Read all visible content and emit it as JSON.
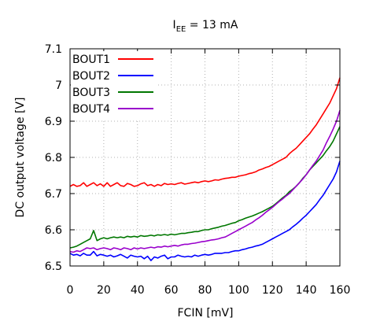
{
  "chart_data": {
    "type": "line",
    "title": "I_EE = 13 mA",
    "title_parts": {
      "main": "I",
      "sub": "EE",
      "rest": " = 13 mA"
    },
    "xlabel": "FCIN [mV]",
    "ylabel": "DC output voltage [V]",
    "xlim": [
      0,
      160
    ],
    "ylim": [
      6.5,
      7.1
    ],
    "xticks": [
      0,
      20,
      40,
      60,
      80,
      100,
      120,
      140,
      160
    ],
    "yticks": [
      6.5,
      6.6,
      6.7,
      6.8,
      6.9,
      7.0,
      7.1
    ],
    "ytick_labels": [
      "6.5",
      "6.6",
      "6.7",
      "6.8",
      "6.9",
      "7",
      "7.1"
    ],
    "grid": "dotted",
    "legend_position": "top-left",
    "series": [
      {
        "name": "BOUT1",
        "color": "#ff0000",
        "x": [
          0,
          2,
          4,
          6,
          8,
          10,
          12,
          14,
          16,
          18,
          20,
          22,
          24,
          26,
          28,
          30,
          32,
          34,
          36,
          38,
          40,
          42,
          44,
          46,
          48,
          50,
          52,
          54,
          56,
          58,
          60,
          62,
          64,
          66,
          68,
          70,
          72,
          74,
          76,
          78,
          80,
          82,
          84,
          86,
          88,
          90,
          92,
          94,
          96,
          98,
          100,
          102,
          104,
          106,
          108,
          110,
          112,
          114,
          116,
          118,
          120,
          122,
          124,
          126,
          128,
          130,
          132,
          134,
          136,
          138,
          140,
          142,
          144,
          146,
          148,
          150,
          152,
          154,
          156,
          158,
          160
        ],
        "y": [
          6.72,
          6.725,
          6.72,
          6.722,
          6.73,
          6.72,
          6.725,
          6.73,
          6.722,
          6.727,
          6.72,
          6.73,
          6.72,
          6.725,
          6.73,
          6.722,
          6.72,
          6.728,
          6.725,
          6.72,
          6.722,
          6.727,
          6.73,
          6.722,
          6.725,
          6.72,
          6.725,
          6.722,
          6.728,
          6.725,
          6.727,
          6.725,
          6.728,
          6.73,
          6.726,
          6.728,
          6.73,
          6.732,
          6.73,
          6.733,
          6.735,
          6.733,
          6.735,
          6.738,
          6.737,
          6.74,
          6.742,
          6.743,
          6.745,
          6.745,
          6.748,
          6.75,
          6.752,
          6.755,
          6.757,
          6.76,
          6.765,
          6.768,
          6.772,
          6.775,
          6.78,
          6.785,
          6.79,
          6.795,
          6.8,
          6.81,
          6.818,
          6.825,
          6.835,
          6.845,
          6.855,
          6.865,
          6.878,
          6.89,
          6.905,
          6.92,
          6.935,
          6.95,
          6.97,
          6.99,
          7.02
        ]
      },
      {
        "name": "BOUT2",
        "color": "#0000ff",
        "x": [
          0,
          2,
          4,
          6,
          8,
          10,
          12,
          14,
          16,
          18,
          20,
          22,
          24,
          26,
          28,
          30,
          32,
          34,
          36,
          38,
          40,
          42,
          44,
          46,
          48,
          50,
          52,
          54,
          56,
          58,
          60,
          62,
          64,
          66,
          68,
          70,
          72,
          74,
          76,
          78,
          80,
          82,
          84,
          86,
          88,
          90,
          92,
          94,
          96,
          98,
          100,
          102,
          104,
          106,
          108,
          110,
          112,
          114,
          116,
          118,
          120,
          122,
          124,
          126,
          128,
          130,
          132,
          134,
          136,
          138,
          140,
          142,
          144,
          146,
          148,
          150,
          152,
          154,
          156,
          158,
          160
        ],
        "y": [
          6.535,
          6.53,
          6.532,
          6.528,
          6.535,
          6.53,
          6.53,
          6.54,
          6.528,
          6.532,
          6.53,
          6.527,
          6.53,
          6.525,
          6.528,
          6.532,
          6.527,
          6.522,
          6.53,
          6.527,
          6.525,
          6.527,
          6.52,
          6.527,
          6.515,
          6.525,
          6.522,
          6.527,
          6.53,
          6.52,
          6.525,
          6.525,
          6.53,
          6.527,
          6.525,
          6.527,
          6.525,
          6.53,
          6.527,
          6.53,
          6.532,
          6.53,
          6.532,
          6.535,
          6.535,
          6.535,
          6.537,
          6.537,
          6.54,
          6.542,
          6.542,
          6.545,
          6.547,
          6.55,
          6.552,
          6.555,
          6.557,
          6.56,
          6.565,
          6.57,
          6.575,
          6.58,
          6.585,
          6.59,
          6.595,
          6.6,
          6.608,
          6.615,
          6.623,
          6.632,
          6.64,
          6.65,
          6.66,
          6.67,
          6.683,
          6.695,
          6.71,
          6.725,
          6.74,
          6.76,
          6.79
        ]
      },
      {
        "name": "BOUT3",
        "color": "#007700",
        "x": [
          0,
          2,
          4,
          6,
          8,
          10,
          12,
          14,
          16,
          18,
          20,
          22,
          24,
          26,
          28,
          30,
          32,
          34,
          36,
          38,
          40,
          42,
          44,
          46,
          48,
          50,
          52,
          54,
          56,
          58,
          60,
          62,
          64,
          66,
          68,
          70,
          72,
          74,
          76,
          78,
          80,
          82,
          84,
          86,
          88,
          90,
          92,
          94,
          96,
          98,
          100,
          102,
          104,
          106,
          108,
          110,
          112,
          114,
          116,
          118,
          120,
          122,
          124,
          126,
          128,
          130,
          132,
          134,
          136,
          138,
          140,
          142,
          144,
          146,
          148,
          150,
          152,
          154,
          156,
          158,
          160
        ],
        "y": [
          6.55,
          6.552,
          6.555,
          6.56,
          6.565,
          6.57,
          6.575,
          6.598,
          6.57,
          6.575,
          6.578,
          6.575,
          6.578,
          6.58,
          6.578,
          6.58,
          6.578,
          6.582,
          6.58,
          6.582,
          6.58,
          6.584,
          6.582,
          6.583,
          6.585,
          6.583,
          6.586,
          6.585,
          6.587,
          6.585,
          6.588,
          6.586,
          6.588,
          6.59,
          6.59,
          6.592,
          6.593,
          6.595,
          6.595,
          6.598,
          6.6,
          6.6,
          6.603,
          6.605,
          6.607,
          6.61,
          6.612,
          6.615,
          6.618,
          6.62,
          6.625,
          6.628,
          6.632,
          6.635,
          6.638,
          6.642,
          6.646,
          6.65,
          6.655,
          6.66,
          6.665,
          6.672,
          6.68,
          6.688,
          6.695,
          6.705,
          6.712,
          6.72,
          6.73,
          6.742,
          6.752,
          6.765,
          6.775,
          6.785,
          6.795,
          6.805,
          6.818,
          6.83,
          6.845,
          6.865,
          6.885
        ]
      },
      {
        "name": "BOUT4",
        "color": "#9900cc",
        "x": [
          0,
          2,
          4,
          6,
          8,
          10,
          12,
          14,
          16,
          18,
          20,
          22,
          24,
          26,
          28,
          30,
          32,
          34,
          36,
          38,
          40,
          42,
          44,
          46,
          48,
          50,
          52,
          54,
          56,
          58,
          60,
          62,
          64,
          66,
          68,
          70,
          72,
          74,
          76,
          78,
          80,
          82,
          84,
          86,
          88,
          90,
          92,
          94,
          96,
          98,
          100,
          102,
          104,
          106,
          108,
          110,
          112,
          114,
          116,
          118,
          120,
          122,
          124,
          126,
          128,
          130,
          132,
          134,
          136,
          138,
          140,
          142,
          144,
          146,
          148,
          150,
          152,
          154,
          156,
          158,
          160
        ],
        "y": [
          6.54,
          6.538,
          6.542,
          6.54,
          6.545,
          6.55,
          6.548,
          6.55,
          6.545,
          6.548,
          6.55,
          6.548,
          6.545,
          6.55,
          6.548,
          6.545,
          6.55,
          6.548,
          6.545,
          6.55,
          6.547,
          6.55,
          6.548,
          6.55,
          6.552,
          6.55,
          6.553,
          6.552,
          6.555,
          6.553,
          6.555,
          6.557,
          6.555,
          6.558,
          6.56,
          6.56,
          6.562,
          6.563,
          6.565,
          6.567,
          6.568,
          6.57,
          6.572,
          6.573,
          6.575,
          6.578,
          6.58,
          6.585,
          6.59,
          6.595,
          6.6,
          6.605,
          6.61,
          6.615,
          6.62,
          6.627,
          6.633,
          6.64,
          6.648,
          6.655,
          6.662,
          6.67,
          6.678,
          6.685,
          6.693,
          6.7,
          6.71,
          6.72,
          6.73,
          6.74,
          6.752,
          6.765,
          6.778,
          6.79,
          6.805,
          6.82,
          6.84,
          6.858,
          6.878,
          6.9,
          6.93
        ]
      }
    ]
  }
}
